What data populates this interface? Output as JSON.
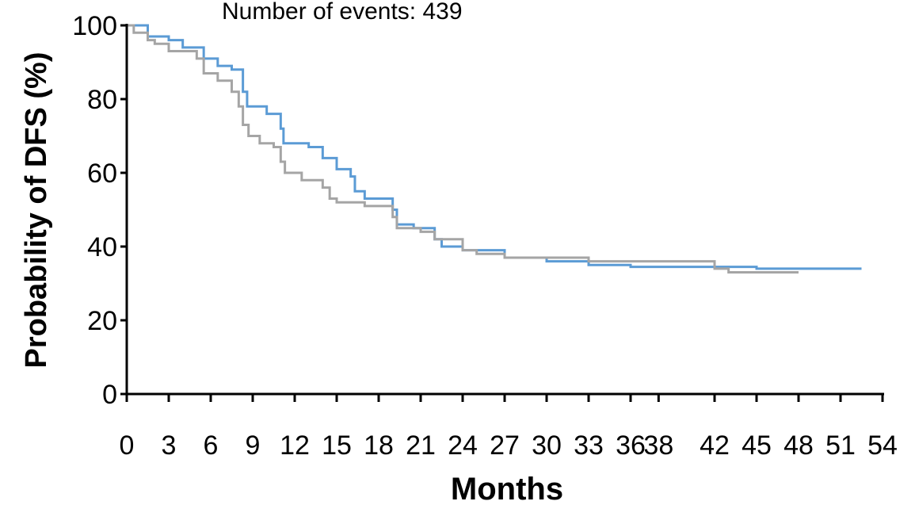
{
  "chart_data": {
    "type": "step",
    "annotation": "Number of events: 439",
    "xlabel": "Months",
    "ylabel": "Probability of DFS (%)",
    "xlim": [
      0,
      54
    ],
    "xticks": [
      0,
      3,
      6,
      9,
      12,
      15,
      18,
      21,
      24,
      27,
      30,
      33,
      36,
      38,
      42,
      45,
      48,
      51,
      54
    ],
    "ylim": [
      0,
      100
    ],
    "yticks": [
      0,
      20,
      40,
      60,
      80,
      100
    ],
    "series": [
      {
        "color": "#5b9bd5",
        "x": [
          0,
          1.5,
          3,
          4,
          5.5,
          6.5,
          7.5,
          8.3,
          8.6,
          10,
          11,
          11.2,
          13,
          14,
          15,
          16,
          16.3,
          17,
          19,
          19.3,
          20.5,
          22,
          22.5,
          24,
          27,
          30,
          33,
          36,
          45,
          52.5
        ],
        "values": [
          100,
          97,
          96,
          94,
          91,
          89,
          88,
          82,
          78,
          76,
          72,
          68,
          67,
          64,
          61,
          59,
          55,
          53,
          50,
          46,
          45,
          42,
          40,
          39,
          37,
          36,
          35,
          34.5,
          34,
          34
        ]
      },
      {
        "color": "#a5a5a5",
        "x": [
          0,
          0.5,
          1.5,
          2,
          3,
          5,
          5.5,
          6.5,
          7.5,
          8,
          8.3,
          8.7,
          9.5,
          10.5,
          11,
          11.3,
          12.5,
          14,
          14.5,
          15,
          17,
          19,
          19.3,
          21,
          22,
          24,
          25,
          27,
          33,
          42,
          43,
          48
        ],
        "values": [
          100,
          98,
          96,
          95,
          93,
          91,
          87,
          85,
          82,
          78,
          73,
          70,
          68,
          67,
          63,
          60,
          58,
          56,
          53,
          52,
          51,
          48,
          45,
          44,
          42,
          39,
          38,
          37,
          36,
          34,
          33,
          33
        ]
      }
    ]
  }
}
